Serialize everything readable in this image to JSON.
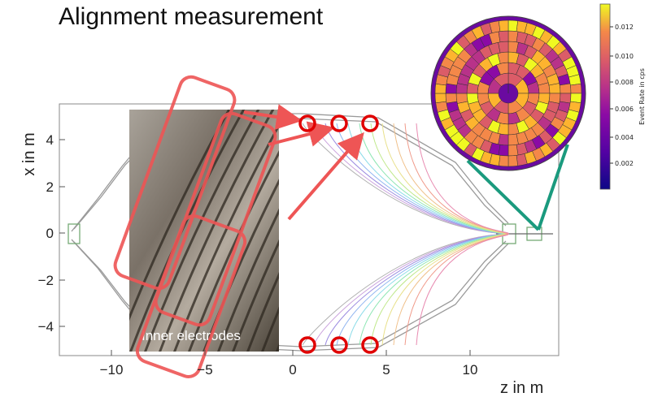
{
  "title": "Alignment measurement",
  "axes": {
    "x_label": "z in m",
    "y_label": "x in m",
    "x_ticks": [
      "−10",
      "−5",
      "0",
      "5",
      "10"
    ],
    "y_ticks": [
      "4",
      "2",
      "0",
      "−2",
      "−4"
    ]
  },
  "photo": {
    "label": "Inner electrodes"
  },
  "colorbar": {
    "label": "Event Rate in cps",
    "ticks": [
      "0.012",
      "0.010",
      "0.008",
      "0.006",
      "0.004",
      "0.002"
    ],
    "colormap": "plasma"
  },
  "detector_map": {
    "rings": [
      1,
      8,
      16,
      24,
      32,
      40,
      48
    ]
  },
  "colors": {
    "highlight": "#ee5555",
    "marker_ring": "#e00000",
    "connector": "#1a9a7e"
  }
}
